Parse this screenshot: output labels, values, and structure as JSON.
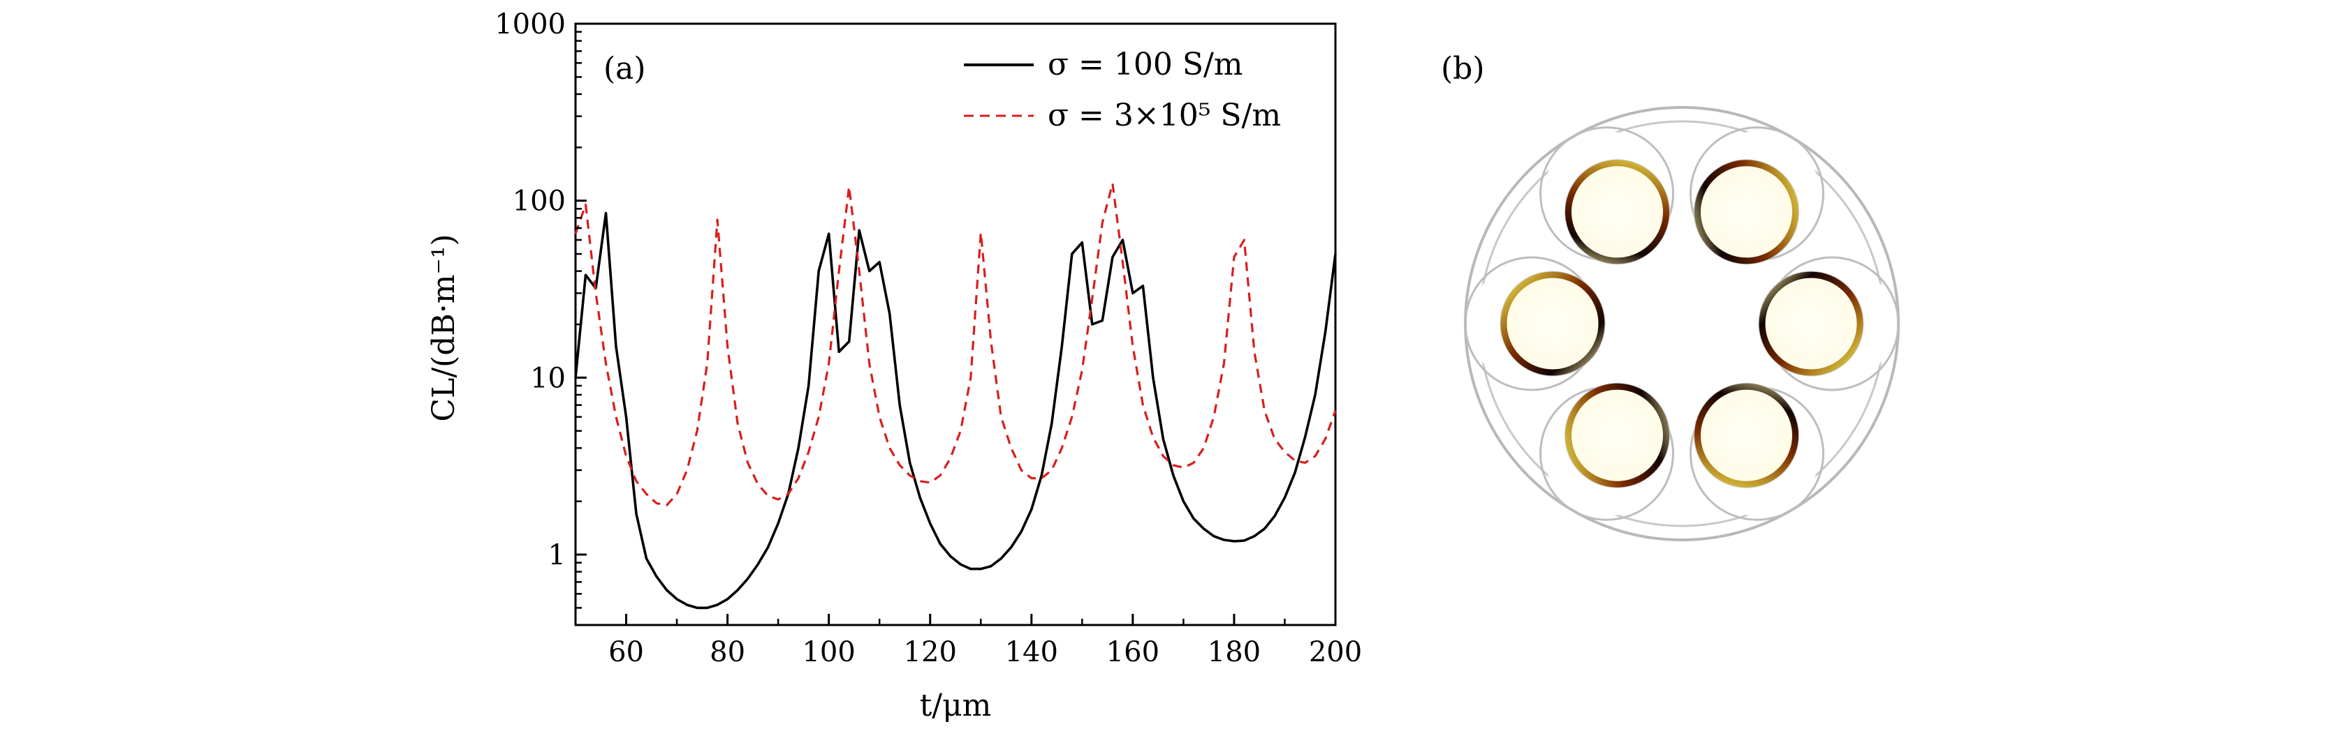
{
  "chart_data": [
    {
      "type": "line",
      "panel_label": "(a)",
      "xlabel": "t/μm",
      "ylabel": "CL/(dB·m⁻¹)",
      "xlim": [
        50,
        200
      ],
      "ylim": [
        0.4,
        1000
      ],
      "yscale": "log",
      "x_ticks": [
        60,
        80,
        100,
        120,
        140,
        160,
        180,
        200
      ],
      "x_tick_labels": [
        "60",
        "80",
        "100",
        "120",
        "140",
        "160",
        "180",
        "200"
      ],
      "y_ticks": [
        1,
        10,
        100,
        1000
      ],
      "y_tick_labels": [
        "1",
        "10",
        "100",
        "1000"
      ],
      "grid": false,
      "legend_position": "top-right",
      "series": [
        {
          "name": "σ = 100 S/m",
          "color": "#000000",
          "style": "solid",
          "x": [
            50,
            52,
            54,
            56,
            58,
            60,
            62,
            64,
            66,
            68,
            70,
            72,
            74,
            76,
            78,
            80,
            82,
            84,
            86,
            88,
            90,
            92,
            94,
            96,
            98,
            100,
            102,
            104,
            106,
            108,
            110,
            112,
            114,
            116,
            118,
            120,
            122,
            124,
            126,
            128,
            130,
            132,
            134,
            136,
            138,
            140,
            142,
            144,
            146,
            148,
            150,
            152,
            154,
            156,
            158,
            160,
            162,
            164,
            166,
            168,
            170,
            172,
            174,
            176,
            178,
            180,
            182,
            184,
            186,
            188,
            190,
            192,
            194,
            196,
            198,
            200
          ],
          "y": [
            10,
            38,
            32,
            85,
            15,
            6,
            1.7,
            0.95,
            0.75,
            0.63,
            0.56,
            0.52,
            0.5,
            0.5,
            0.52,
            0.56,
            0.63,
            0.73,
            0.88,
            1.1,
            1.5,
            2.2,
            4,
            9,
            40,
            65,
            14,
            16,
            68,
            40,
            45,
            23,
            7,
            3.3,
            2.1,
            1.5,
            1.15,
            0.98,
            0.88,
            0.83,
            0.83,
            0.86,
            0.95,
            1.1,
            1.35,
            1.8,
            2.8,
            5.5,
            15,
            50,
            58,
            20,
            21,
            48,
            60,
            30,
            33,
            10,
            4.5,
            2.8,
            2,
            1.6,
            1.4,
            1.27,
            1.21,
            1.19,
            1.2,
            1.27,
            1.4,
            1.65,
            2.1,
            2.9,
            4.6,
            8,
            18,
            50
          ]
        },
        {
          "name": "σ = 3×10⁵ S/m",
          "color": "#d81e1e",
          "style": "dashed",
          "x": [
            50,
            52,
            54,
            56,
            58,
            60,
            62,
            64,
            66,
            68,
            70,
            72,
            74,
            76,
            78,
            80,
            82,
            84,
            86,
            88,
            90,
            92,
            94,
            96,
            98,
            100,
            102,
            104,
            106,
            108,
            110,
            112,
            114,
            116,
            118,
            120,
            122,
            124,
            126,
            128,
            130,
            132,
            134,
            136,
            138,
            140,
            142,
            144,
            146,
            148,
            150,
            152,
            154,
            156,
            158,
            160,
            162,
            164,
            166,
            168,
            170,
            172,
            174,
            176,
            178,
            180,
            182,
            184,
            186,
            188,
            190,
            192,
            194,
            196,
            198,
            200
          ],
          "y": [
            65,
            95,
            30,
            12,
            6,
            3.6,
            2.6,
            2.2,
            1.95,
            1.9,
            2.2,
            3,
            5,
            12,
            78,
            15,
            5.5,
            3.3,
            2.5,
            2.15,
            2.05,
            2.2,
            2.7,
            3.8,
            6,
            12,
            40,
            120,
            40,
            12,
            6,
            4,
            3.2,
            2.8,
            2.6,
            2.55,
            2.8,
            3.5,
            5,
            10,
            66,
            16,
            6,
            4,
            3,
            2.7,
            2.7,
            3,
            4,
            6,
            11,
            28,
            75,
            125,
            45,
            15,
            7,
            4.6,
            3.6,
            3.2,
            3.1,
            3.3,
            4,
            6,
            12,
            48,
            60,
            14,
            6.5,
            4.5,
            3.8,
            3.4,
            3.3,
            3.6,
            4.5,
            6.5
          ]
        }
      ]
    },
    {
      "type": "other",
      "panel_label": "(b)",
      "content": "fiber cross-section mode-field image"
    }
  ]
}
